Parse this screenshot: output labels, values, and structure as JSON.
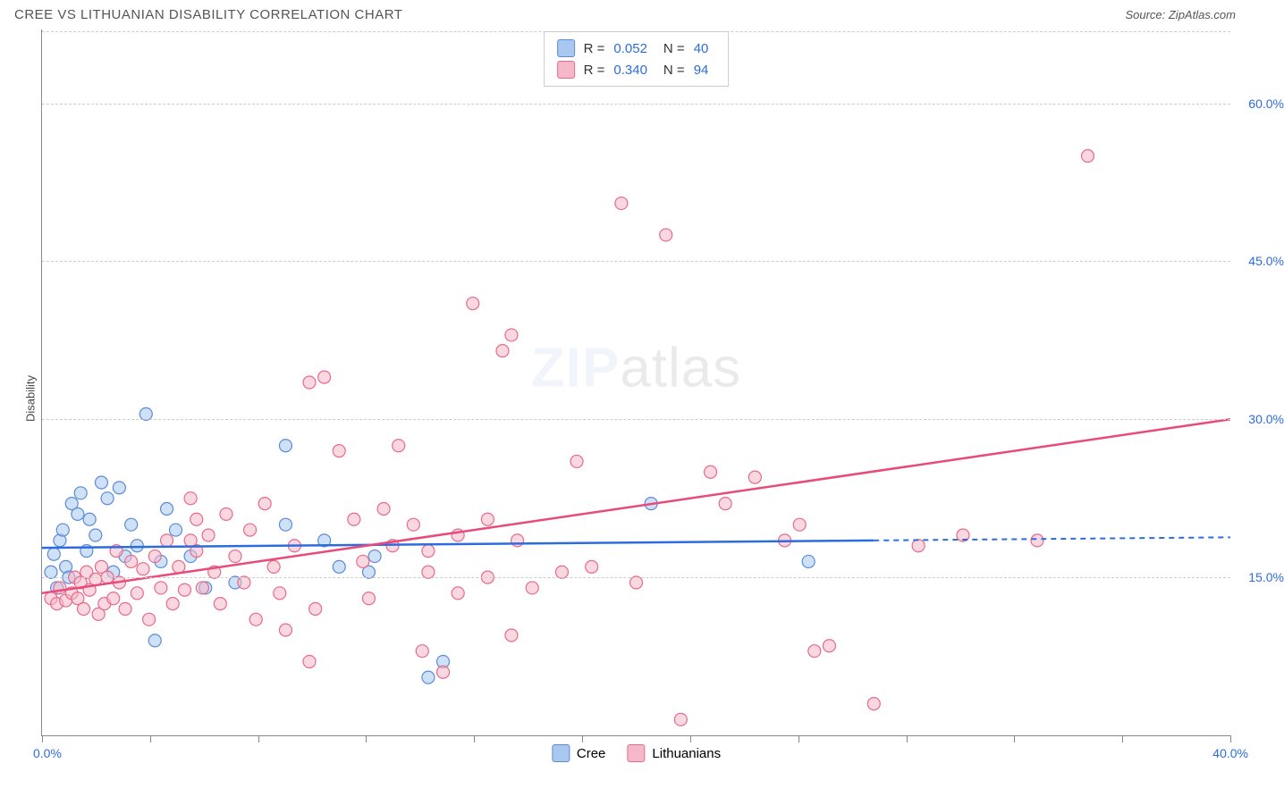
{
  "header": {
    "title": "CREE VS LITHUANIAN DISABILITY CORRELATION CHART",
    "source_prefix": "Source: ",
    "source": "ZipAtlas.com"
  },
  "chart": {
    "type": "scatter",
    "ylabel": "Disability",
    "watermark_bold": "ZIP",
    "watermark_rest": "atlas",
    "xlim": [
      0,
      40
    ],
    "ylim": [
      0,
      67
    ],
    "x_min_label": "0.0%",
    "x_max_label": "40.0%",
    "y_ticks": [
      {
        "v": 15,
        "label": "15.0%"
      },
      {
        "v": 30,
        "label": "30.0%"
      },
      {
        "v": 45,
        "label": "45.0%"
      },
      {
        "v": 60,
        "label": "60.0%"
      }
    ],
    "x_tick_positions": [
      0,
      3.64,
      7.27,
      10.91,
      14.55,
      18.18,
      21.82,
      25.45,
      29.09,
      32.73,
      36.36,
      40
    ],
    "grid_color": "#cccccc",
    "background_color": "#ffffff",
    "marker_radius": 7,
    "marker_opacity": 0.55,
    "series": [
      {
        "name": "Cree",
        "color_fill": "#a8c8f0",
        "color_stroke": "#5b8bd8",
        "line_color": "#2d6cdf",
        "R": "0.052",
        "N": "40",
        "regression": {
          "x1": 0,
          "y1": 17.8,
          "x2": 40,
          "y2": 18.8,
          "solid_until_x": 28
        },
        "points": [
          [
            0.3,
            15.5
          ],
          [
            0.4,
            17.2
          ],
          [
            0.5,
            14.0
          ],
          [
            0.6,
            18.5
          ],
          [
            0.7,
            19.5
          ],
          [
            0.8,
            16.0
          ],
          [
            0.9,
            15.0
          ],
          [
            1.0,
            22.0
          ],
          [
            1.2,
            21.0
          ],
          [
            1.3,
            23.0
          ],
          [
            1.5,
            17.5
          ],
          [
            1.6,
            20.5
          ],
          [
            1.8,
            19.0
          ],
          [
            2.0,
            24.0
          ],
          [
            2.2,
            22.5
          ],
          [
            2.4,
            15.5
          ],
          [
            2.6,
            23.5
          ],
          [
            2.8,
            17.0
          ],
          [
            3.0,
            20.0
          ],
          [
            3.2,
            18.0
          ],
          [
            3.5,
            30.5
          ],
          [
            3.8,
            9.0
          ],
          [
            4.0,
            16.5
          ],
          [
            4.2,
            21.5
          ],
          [
            4.5,
            19.5
          ],
          [
            5.0,
            17.0
          ],
          [
            5.5,
            14.0
          ],
          [
            6.5,
            14.5
          ],
          [
            8.2,
            27.5
          ],
          [
            8.2,
            20.0
          ],
          [
            9.5,
            18.5
          ],
          [
            10.0,
            16.0
          ],
          [
            11.0,
            15.5
          ],
          [
            11.2,
            17.0
          ],
          [
            13.0,
            5.5
          ],
          [
            13.5,
            7.0
          ],
          [
            20.5,
            22.0
          ],
          [
            25.8,
            16.5
          ]
        ]
      },
      {
        "name": "Lithuanians",
        "color_fill": "#f5b8c8",
        "color_stroke": "#e86a8a",
        "line_color": "#e84a7a",
        "R": "0.340",
        "N": "94",
        "regression": {
          "x1": 0,
          "y1": 13.5,
          "x2": 40,
          "y2": 30.0,
          "solid_until_x": 40
        },
        "points": [
          [
            0.3,
            13.0
          ],
          [
            0.5,
            12.5
          ],
          [
            0.6,
            14.0
          ],
          [
            0.8,
            12.8
          ],
          [
            1.0,
            13.5
          ],
          [
            1.1,
            15.0
          ],
          [
            1.2,
            13.0
          ],
          [
            1.3,
            14.5
          ],
          [
            1.4,
            12.0
          ],
          [
            1.5,
            15.5
          ],
          [
            1.6,
            13.8
          ],
          [
            1.8,
            14.8
          ],
          [
            1.9,
            11.5
          ],
          [
            2.0,
            16.0
          ],
          [
            2.1,
            12.5
          ],
          [
            2.2,
            15.0
          ],
          [
            2.4,
            13.0
          ],
          [
            2.5,
            17.5
          ],
          [
            2.6,
            14.5
          ],
          [
            2.8,
            12.0
          ],
          [
            3.0,
            16.5
          ],
          [
            3.2,
            13.5
          ],
          [
            3.4,
            15.8
          ],
          [
            3.6,
            11.0
          ],
          [
            3.8,
            17.0
          ],
          [
            4.0,
            14.0
          ],
          [
            4.2,
            18.5
          ],
          [
            4.4,
            12.5
          ],
          [
            4.6,
            16.0
          ],
          [
            4.8,
            13.8
          ],
          [
            5.0,
            22.5
          ],
          [
            5.2,
            17.5
          ],
          [
            5.4,
            14.0
          ],
          [
            5.6,
            19.0
          ],
          [
            5.8,
            15.5
          ],
          [
            5.0,
            18.5
          ],
          [
            5.2,
            20.5
          ],
          [
            6.0,
            12.5
          ],
          [
            6.2,
            21.0
          ],
          [
            6.5,
            17.0
          ],
          [
            6.8,
            14.5
          ],
          [
            7.0,
            19.5
          ],
          [
            7.2,
            11.0
          ],
          [
            7.5,
            22.0
          ],
          [
            7.8,
            16.0
          ],
          [
            8.0,
            13.5
          ],
          [
            8.2,
            10.0
          ],
          [
            8.5,
            18.0
          ],
          [
            9.0,
            33.5
          ],
          [
            9.2,
            12.0
          ],
          [
            9.5,
            34.0
          ],
          [
            9.0,
            7.0
          ],
          [
            10.0,
            27.0
          ],
          [
            10.5,
            20.5
          ],
          [
            10.8,
            16.5
          ],
          [
            11.0,
            13.0
          ],
          [
            11.5,
            21.5
          ],
          [
            11.8,
            18.0
          ],
          [
            12.0,
            27.5
          ],
          [
            12.5,
            20.0
          ],
          [
            12.8,
            8.0
          ],
          [
            13.0,
            15.5
          ],
          [
            13.5,
            6.0
          ],
          [
            13.0,
            17.5
          ],
          [
            14.0,
            19.0
          ],
          [
            14.0,
            13.5
          ],
          [
            14.5,
            41.0
          ],
          [
            15.0,
            20.5
          ],
          [
            15.0,
            15.0
          ],
          [
            15.5,
            36.5
          ],
          [
            15.8,
            9.5
          ],
          [
            15.8,
            38.0
          ],
          [
            16.0,
            18.5
          ],
          [
            16.5,
            14.0
          ],
          [
            17.5,
            15.5
          ],
          [
            18.0,
            26.0
          ],
          [
            18.5,
            16.0
          ],
          [
            19.5,
            50.5
          ],
          [
            20.0,
            14.5
          ],
          [
            21.0,
            47.5
          ],
          [
            21.5,
            1.5
          ],
          [
            22.5,
            25.0
          ],
          [
            23.0,
            22.0
          ],
          [
            24.0,
            24.5
          ],
          [
            25.0,
            18.5
          ],
          [
            25.5,
            20.0
          ],
          [
            26.0,
            8.0
          ],
          [
            26.5,
            8.5
          ],
          [
            28.0,
            3.0
          ],
          [
            29.5,
            18.0
          ],
          [
            31.0,
            19.0
          ],
          [
            33.5,
            18.5
          ],
          [
            35.2,
            55.0
          ]
        ]
      }
    ]
  }
}
